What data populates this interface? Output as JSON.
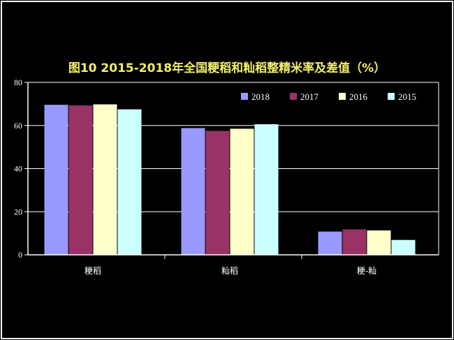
{
  "chart_data": {
    "type": "bar",
    "title": "图10   2015-2018年全国粳稻和籼稻整精米率及差值（%）",
    "xlabel": "",
    "ylabel": "",
    "categories": [
      "粳稻",
      "籼稻",
      "粳-籼"
    ],
    "ylim": [
      0,
      80
    ],
    "yticks": [
      "0",
      "20",
      "40",
      "60",
      "80"
    ],
    "grid": true,
    "legend_position": "top-right",
    "series": [
      {
        "name": "2018",
        "color": "#9999ff",
        "values": [
          69.6,
          58.8,
          10.8
        ]
      },
      {
        "name": "2017",
        "color": "#993366",
        "values": [
          69.3,
          57.5,
          11.8
        ]
      },
      {
        "name": "2016",
        "color": "#ffffcc",
        "values": [
          69.8,
          58.5,
          11.3
        ]
      },
      {
        "name": "2015",
        "color": "#ccffff",
        "values": [
          67.5,
          60.6,
          6.9
        ]
      }
    ]
  },
  "colors": {
    "background": "#000000",
    "frame": "#ffffff",
    "title": "#f2ef6a",
    "axis": "#ffffff"
  }
}
